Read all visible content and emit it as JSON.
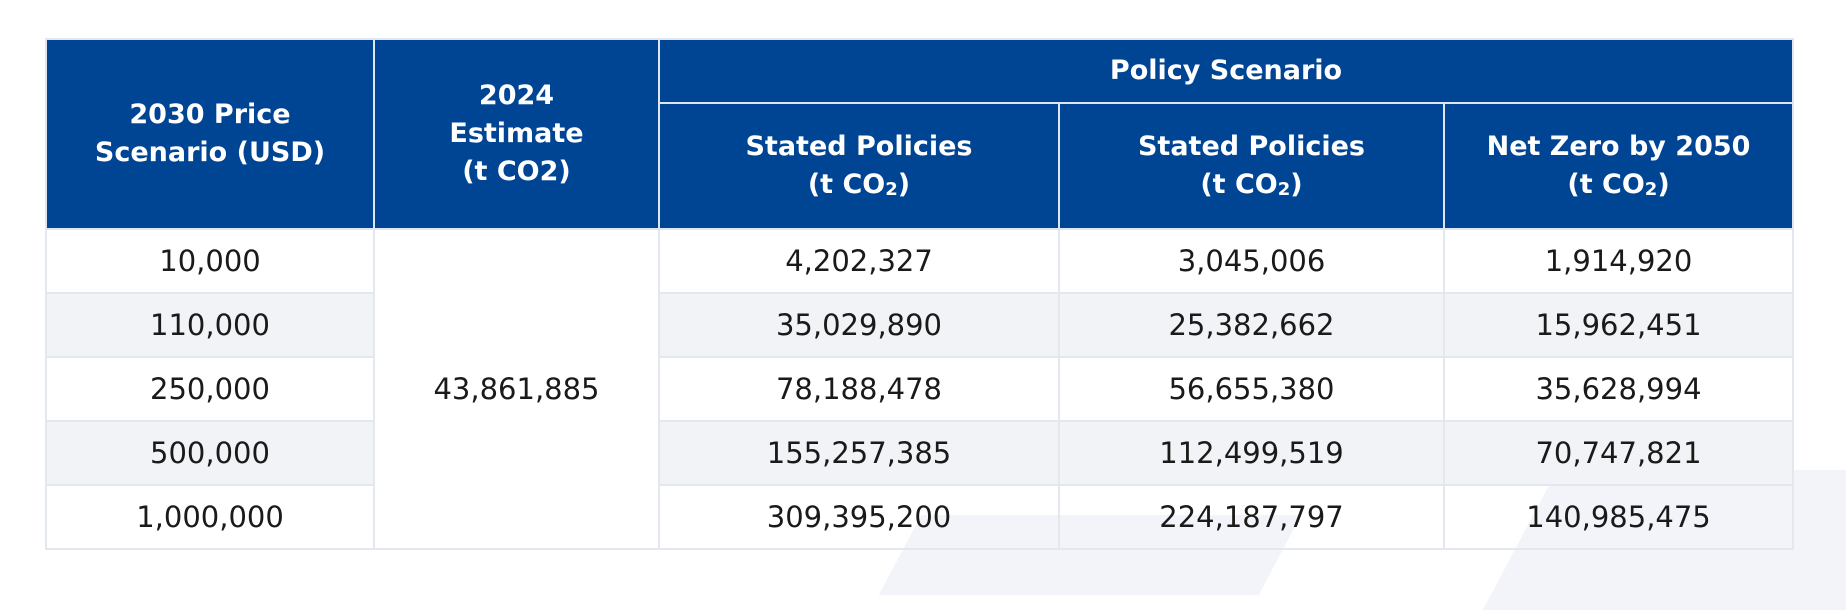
{
  "table": {
    "headers": {
      "price_scenario": [
        "2030 Price",
        "Scenario (USD)"
      ],
      "estimate_2024": [
        "2024",
        "Estimate",
        "(t CO2)"
      ],
      "policy_scenario": "Policy Scenario",
      "sub_columns": [
        {
          "title": "Stated Policies",
          "unit_prefix": "(t CO",
          "unit_sub": "2",
          "unit_suffix": ")"
        },
        {
          "title": "Stated Policies",
          "unit_prefix": "(t CO",
          "unit_sub": "2",
          "unit_suffix": ")"
        },
        {
          "title": "Net Zero by 2050",
          "unit_prefix": "(t CO",
          "unit_sub": "2",
          "unit_suffix": ")"
        }
      ]
    },
    "estimate_2024_value": "43,861,885",
    "rows": [
      {
        "price": "10,000",
        "values": [
          "4,202,327",
          "3,045,006",
          "1,914,920"
        ]
      },
      {
        "price": "110,000",
        "values": [
          "35,029,890",
          "25,382,662",
          "15,962,451"
        ]
      },
      {
        "price": "250,000",
        "values": [
          "78,188,478",
          "56,655,380",
          "35,628,994"
        ]
      },
      {
        "price": "500,000",
        "values": [
          "155,257,385",
          "112,499,519",
          "70,747,821"
        ]
      },
      {
        "price": "1,000,000",
        "values": [
          "309,395,200",
          "224,187,797",
          "140,985,475"
        ]
      }
    ]
  },
  "colors": {
    "header_bg": "#004494",
    "row_alt_bg": "#f1f3f6"
  }
}
